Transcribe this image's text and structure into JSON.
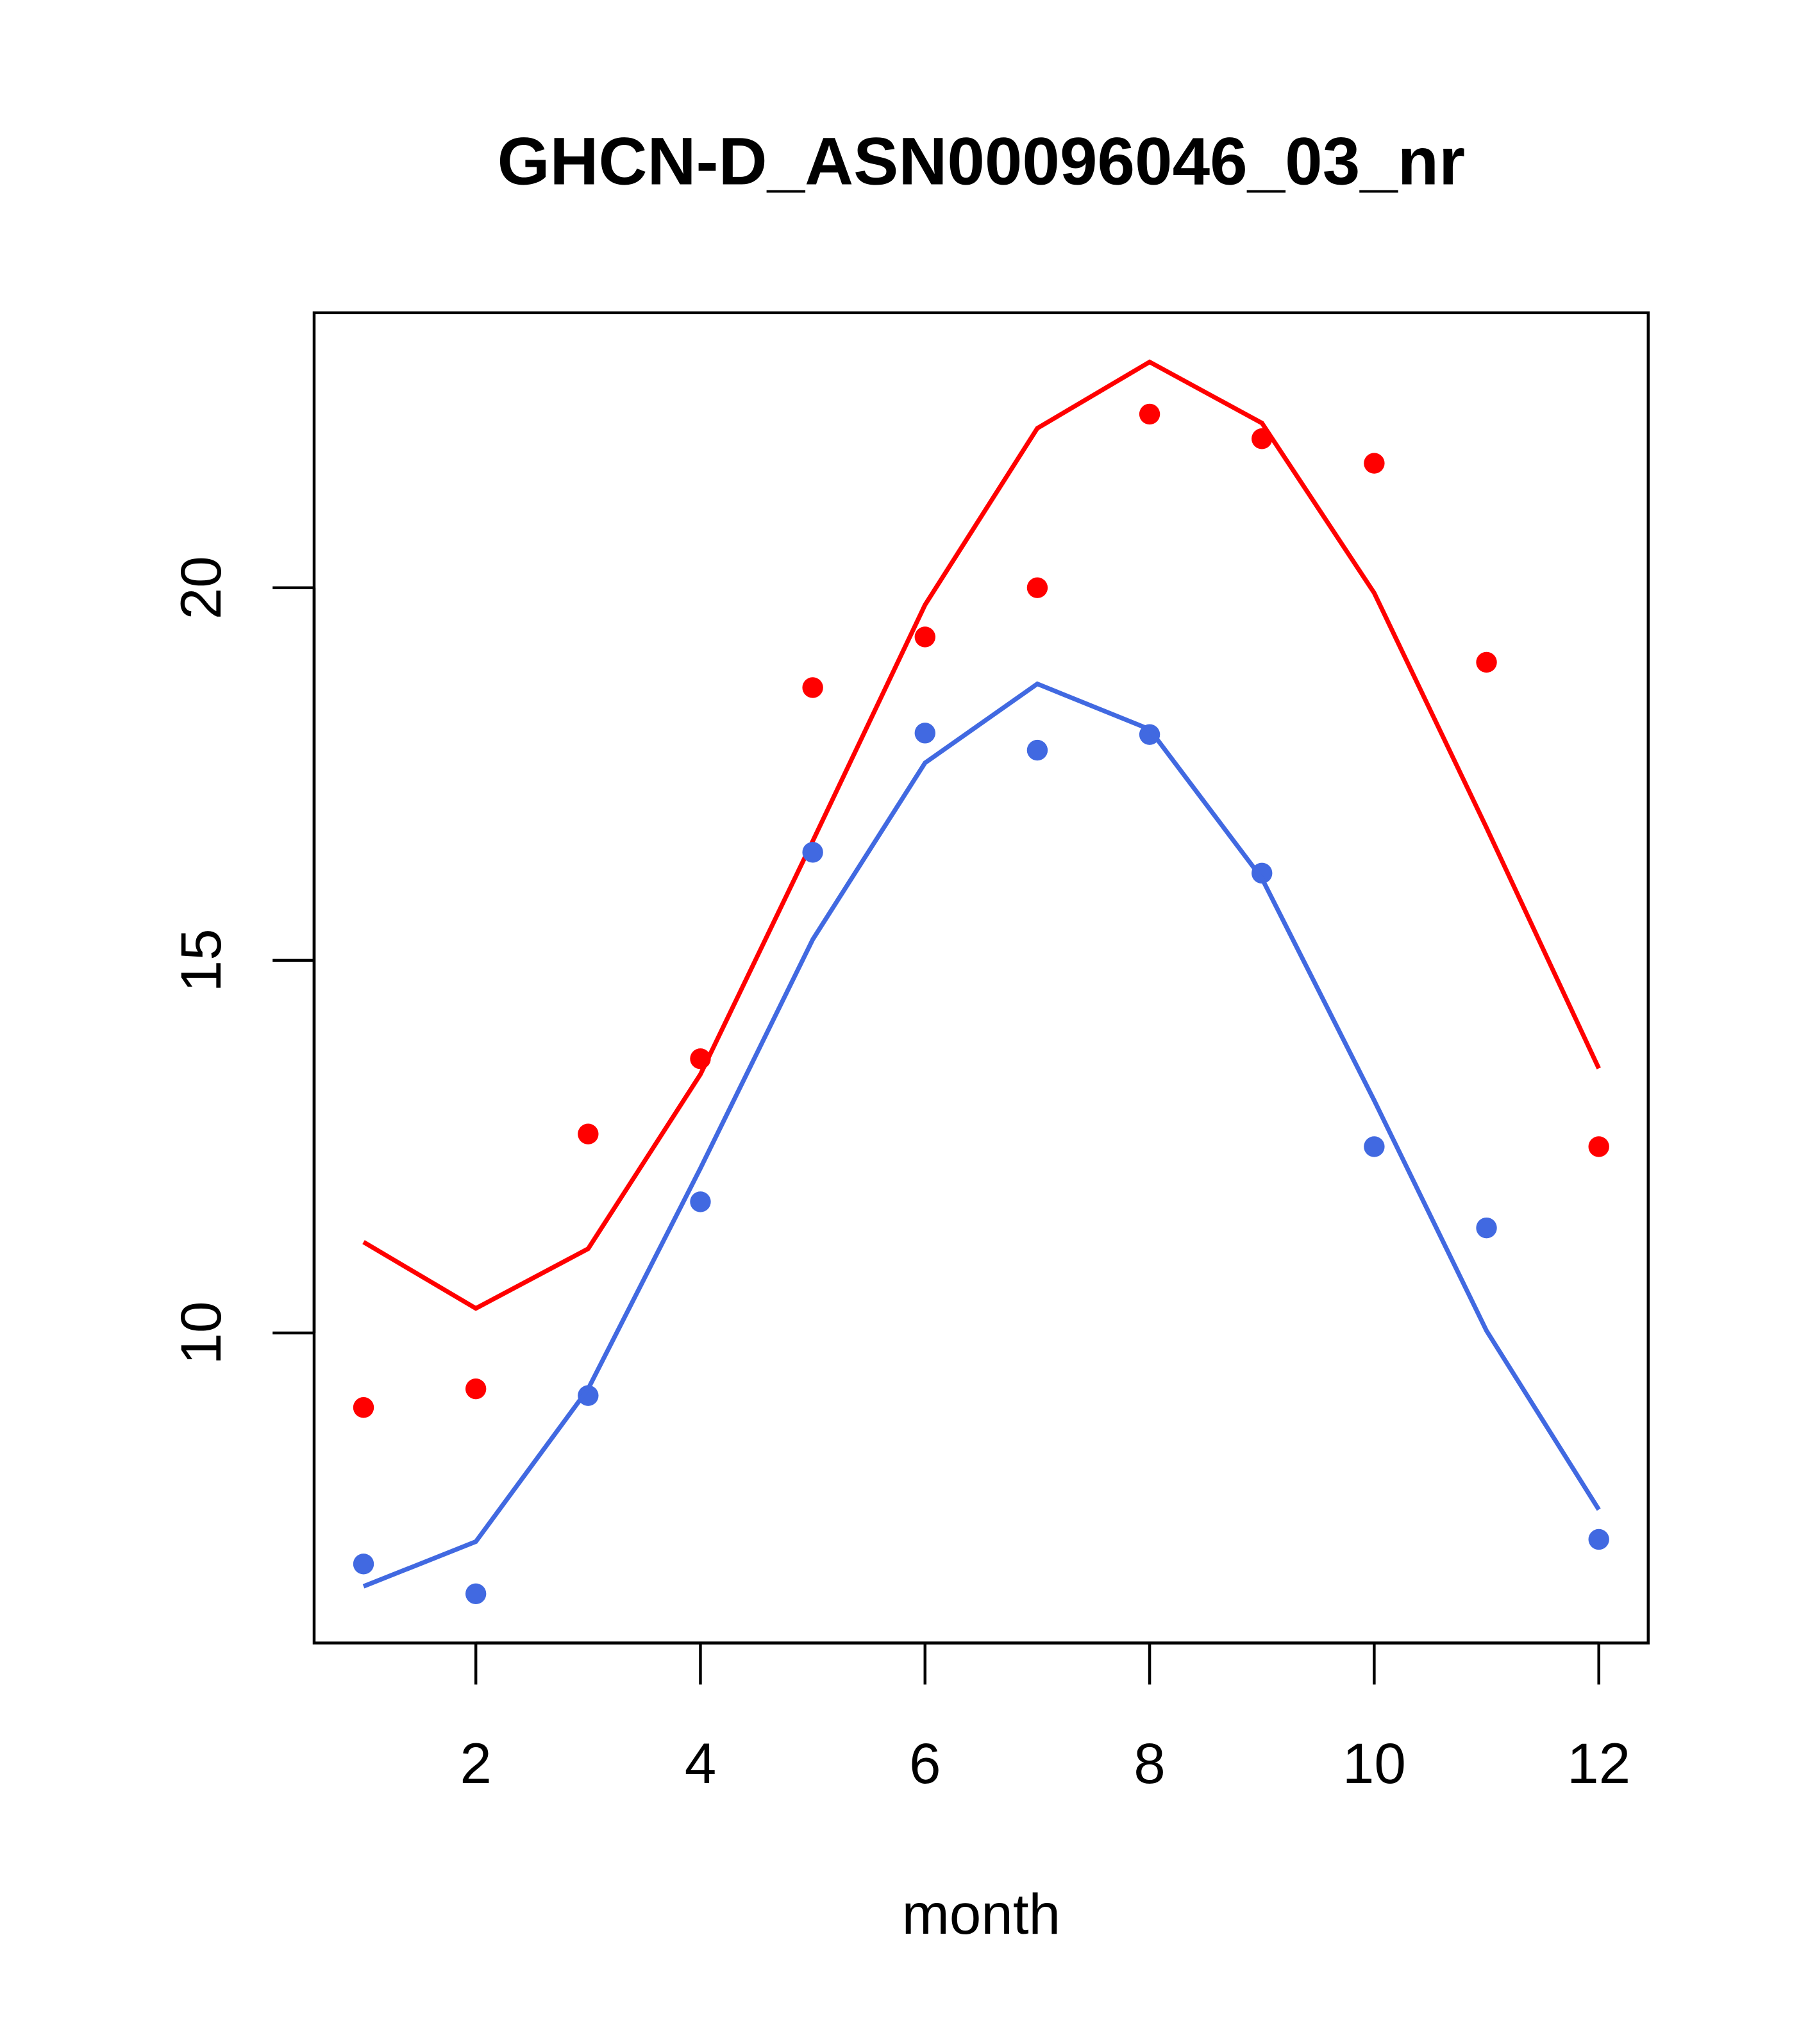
{
  "chart_data": {
    "type": "line",
    "title": "GHCN-D_ASN00096046_03_nr",
    "xlabel": "month",
    "ylabel": "",
    "xlim": [
      0.56,
      12.44
    ],
    "ylim": [
      5.84,
      23.69
    ],
    "xticks": [
      2,
      4,
      6,
      8,
      10,
      12
    ],
    "yticks": [
      10,
      15,
      20
    ],
    "xtick_labels": [
      "2",
      "4",
      "6",
      "8",
      "10",
      "12"
    ],
    "ytick_labels": [
      "10",
      "15",
      "20"
    ],
    "grid": false,
    "x": [
      1,
      2,
      3,
      4,
      5,
      6,
      7,
      8,
      9,
      10,
      11,
      12
    ],
    "series": [
      {
        "name": "red-points",
        "kind": "points",
        "color": "#ff0000",
        "values": [
          9.0,
          9.25,
          12.67,
          13.68,
          18.66,
          19.34,
          20.0,
          22.33,
          22.0,
          21.67,
          19.0,
          12.5
        ]
      },
      {
        "name": "red-line",
        "kind": "line",
        "color": "#ff0000",
        "values": [
          11.22,
          10.33,
          11.13,
          13.47,
          16.6,
          19.77,
          22.14,
          23.03,
          22.21,
          19.93,
          16.78,
          13.55
        ]
      },
      {
        "name": "blue-points",
        "kind": "points",
        "color": "#4169e1",
        "values": [
          6.9,
          6.5,
          9.16,
          11.76,
          16.45,
          18.05,
          17.82,
          18.03,
          16.17,
          12.5,
          11.41,
          7.23
        ]
      },
      {
        "name": "blue-line",
        "kind": "line",
        "color": "#4169e1",
        "values": [
          6.6,
          7.2,
          9.25,
          12.21,
          15.28,
          17.65,
          18.71,
          18.1,
          16.1,
          13.12,
          10.03,
          7.63
        ]
      }
    ]
  }
}
